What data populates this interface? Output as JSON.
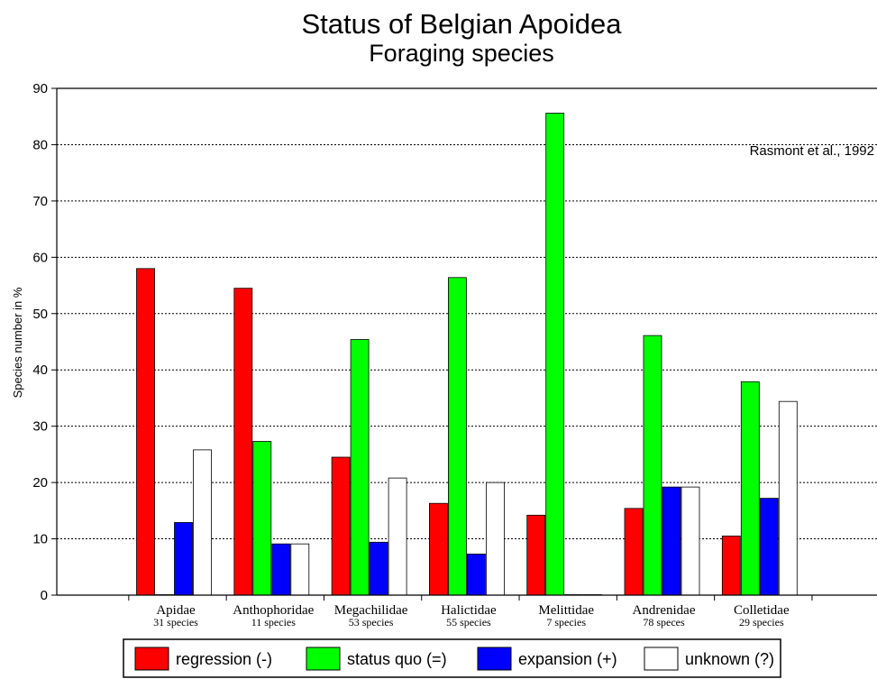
{
  "chart_data": {
    "type": "bar",
    "title": "Status of Belgian Apoidea",
    "subtitle": "Foraging species",
    "annotation": "Rasmont et al.,  1992",
    "ylabel": "Species number in %",
    "xlabel": "",
    "ylim": [
      0,
      90
    ],
    "yticks": [
      0,
      10,
      20,
      30,
      40,
      50,
      60,
      70,
      80,
      90
    ],
    "grid": "horizontal dotted",
    "legend_position": "bottom",
    "categories": [
      "Apidae",
      "Anthophoridae",
      "Megachilidae",
      "Halictidae",
      "Melittidae",
      "Andrenidae",
      "Colletidae"
    ],
    "category_counts": [
      "31 species",
      "11 species",
      "53 species",
      "55 species",
      "7 species",
      "78  speces",
      "29 species"
    ],
    "series": [
      {
        "name": "regression (-)",
        "color": "#ff0000",
        "values": [
          58,
          54.5,
          24.5,
          16.3,
          14.2,
          15.4,
          10.5
        ]
      },
      {
        "name": "status quo (=)",
        "color": "#00ff00",
        "values": [
          0,
          27.3,
          45.4,
          56.4,
          85.6,
          46.1,
          37.9
        ]
      },
      {
        "name": "expansion (+)",
        "color": "#0000ff",
        "values": [
          12.9,
          9.1,
          9.4,
          7.3,
          0,
          19.2,
          17.2
        ]
      },
      {
        "name": "unknown (?)",
        "color": "#ffffff",
        "values": [
          25.8,
          9.1,
          20.8,
          20.0,
          0,
          19.2,
          34.4
        ]
      }
    ]
  }
}
